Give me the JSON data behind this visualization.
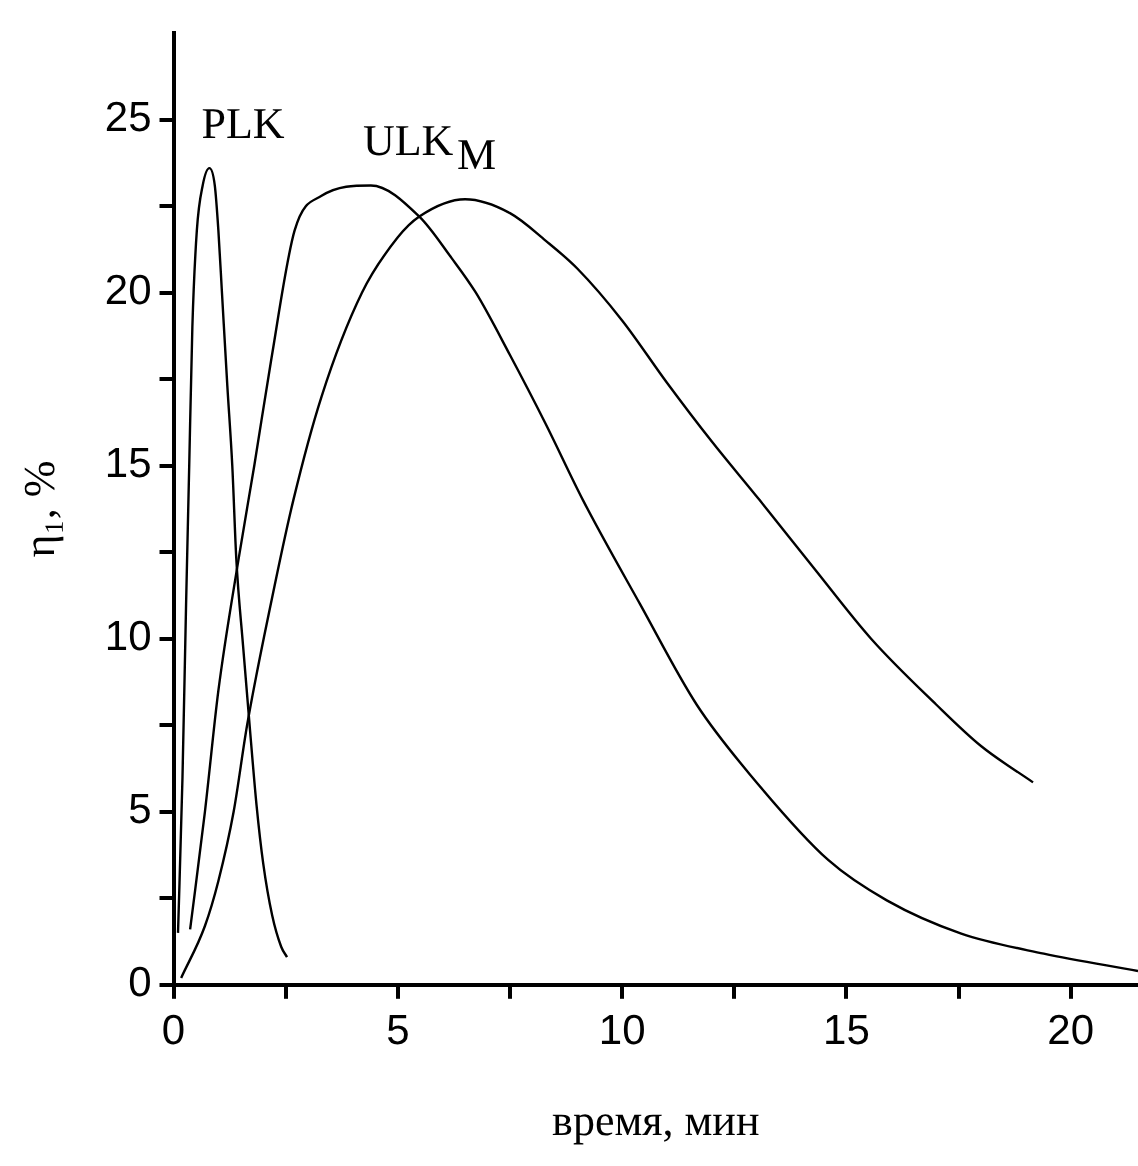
{
  "chart_data": {
    "type": "line",
    "xlabel": "время, мин",
    "ylabel": "η₁, %",
    "xlim": [
      0,
      21.5
    ],
    "xticks": [
      0,
      {
        "value": 2.5,
        "label": null
      },
      5,
      {
        "value": 7.5,
        "label": null
      },
      10,
      {
        "value": 12.5,
        "label": null
      },
      15,
      {
        "value": 17.5,
        "label": null
      },
      20
    ],
    "ylim": [
      0,
      27.5
    ],
    "yticks": [
      0,
      {
        "value": 2.5,
        "label": null
      },
      5,
      {
        "value": 7.5,
        "label": null
      },
      10,
      {
        "value": 12.5,
        "label": null
      },
      15,
      {
        "value": 17.5,
        "label": null
      },
      20,
      {
        "value": 22.5,
        "label": null
      },
      25
    ],
    "grid": false,
    "legend": false,
    "marker": "none",
    "line_style": "solid",
    "series": [
      {
        "name": "PLK",
        "color": "#000000",
        "x": [
          0.1,
          0.2,
          0.28,
          0.35,
          0.42,
          0.52,
          0.65,
          0.8,
          0.92,
          1.0,
          1.08,
          1.2,
          1.31,
          1.4,
          1.55,
          1.69,
          1.85,
          2.0,
          2.2,
          2.4,
          2.53
        ],
        "values": [
          1.5,
          6,
          11,
          15,
          19,
          21.8,
          23.1,
          23.6,
          23.1,
          21.8,
          20,
          17.3,
          15,
          12.3,
          9.8,
          7.6,
          5.2,
          3.5,
          2,
          1.1,
          0.8
        ]
      },
      {
        "name": "ULK",
        "color": "#000000",
        "x": [
          0.37,
          0.7,
          1.0,
          1.45,
          1.8,
          2.17,
          2.7,
          3.3,
          4.4,
          5.48,
          6.2,
          6.74,
          7.5,
          8.3,
          9.13,
          10.4,
          11.66,
          12.9,
          14.6,
          15.9,
          17.56,
          19.4,
          21.5
        ],
        "values": [
          1.6,
          5,
          8.5,
          12.3,
          15,
          18,
          21.8,
          22.8,
          23.1,
          22.2,
          21,
          20,
          18.2,
          16.2,
          14,
          11,
          8.1,
          6,
          3.6,
          2.44,
          1.48,
          0.9,
          0.4
        ]
      },
      {
        "name": "M",
        "color": "#000000",
        "x": [
          0.17,
          0.7,
          1.0,
          1.34,
          1.64,
          2.2,
          2.67,
          3.3,
          4.2,
          5.0,
          5.48,
          6.5,
          7.5,
          8.3,
          9.0,
          10,
          11,
          12,
          13.07,
          14.3,
          15.55,
          17,
          18,
          19.16
        ],
        "values": [
          0.2,
          1.7,
          3.0,
          5,
          7.5,
          11.2,
          14,
          17,
          20,
          21.6,
          22.2,
          22.7,
          22.3,
          21.5,
          20.7,
          19.2,
          17.4,
          15.7,
          14,
          12,
          10,
          8.1,
          6.9,
          5.85
        ]
      }
    ]
  }
}
